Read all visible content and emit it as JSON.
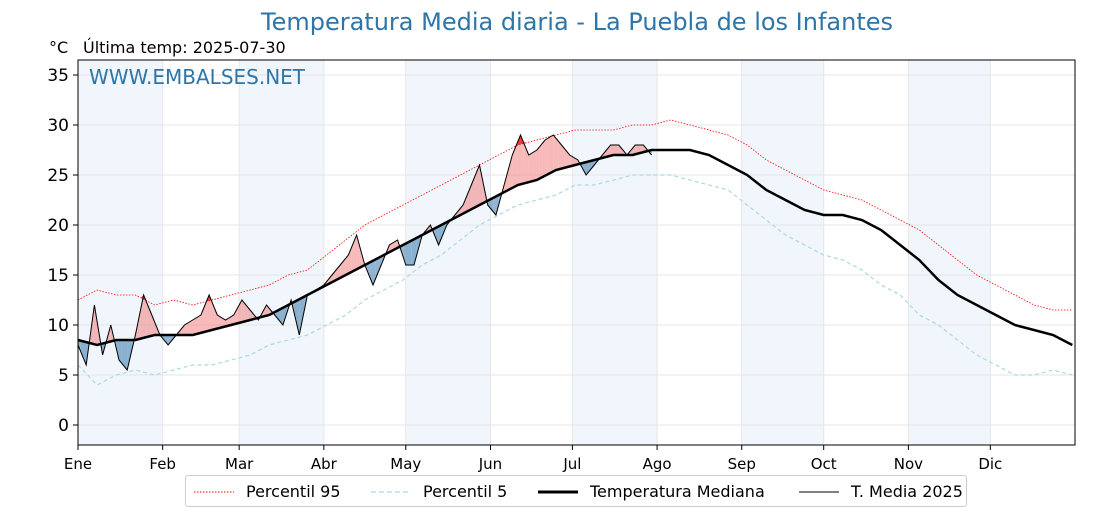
{
  "header": {
    "title": "Temperatura Media diaria - La Puebla de los Infantes",
    "unit": "°C",
    "last_temp": "Última temp: 2025-07-30"
  },
  "watermark": "WWW.EMBALSES.NET",
  "legend": {
    "items": [
      {
        "label": "Percentil 95",
        "color": "#ff0000",
        "style": "dotted"
      },
      {
        "label": "Percentil 5",
        "color": "#add8e6",
        "style": "dashed"
      },
      {
        "label": "Temperatura Mediana",
        "color": "#000000",
        "style": "solid-thick"
      },
      {
        "label": "T. Media 2025",
        "color": "#000000",
        "style": "solid-thin"
      }
    ]
  },
  "colors": {
    "above_median_fill": "#f08080",
    "above_p95_fill": "#ff0000",
    "below_median_fill": "#4682b4",
    "month_band": "#f0f6fb",
    "title": "#2e75a8"
  },
  "chart_data": {
    "type": "line",
    "ylabel": "°C",
    "ylim": [
      -2,
      36.5
    ],
    "yticks": [
      0,
      5,
      10,
      15,
      20,
      25,
      30,
      35
    ],
    "months": [
      "Ene",
      "Feb",
      "Mar",
      "Abr",
      "May",
      "Jun",
      "Jul",
      "Ago",
      "Sep",
      "Oct",
      "Nov",
      "Dic"
    ],
    "grid": true,
    "series": [
      {
        "name": "Percentil 95",
        "points": [
          [
            1,
            12.5
          ],
          [
            8,
            13.5
          ],
          [
            15,
            13
          ],
          [
            22,
            13
          ],
          [
            29,
            12
          ],
          [
            36,
            12.5
          ],
          [
            43,
            12
          ],
          [
            50,
            12.5
          ],
          [
            57,
            13
          ],
          [
            64,
            13.5
          ],
          [
            71,
            14
          ],
          [
            78,
            15
          ],
          [
            85,
            15.5
          ],
          [
            92,
            17
          ],
          [
            99,
            18.5
          ],
          [
            106,
            20
          ],
          [
            113,
            21
          ],
          [
            120,
            22
          ],
          [
            127,
            23
          ],
          [
            134,
            24
          ],
          [
            141,
            25
          ],
          [
            148,
            26
          ],
          [
            155,
            27
          ],
          [
            162,
            28
          ],
          [
            169,
            28.5
          ],
          [
            176,
            29
          ],
          [
            183,
            29.5
          ],
          [
            190,
            29.5
          ],
          [
            197,
            29.5
          ],
          [
            204,
            30
          ],
          [
            211,
            30
          ],
          [
            218,
            30.5
          ],
          [
            225,
            30
          ],
          [
            232,
            29.5
          ],
          [
            239,
            29
          ],
          [
            246,
            28
          ],
          [
            253,
            26.5
          ],
          [
            260,
            25.5
          ],
          [
            267,
            24.5
          ],
          [
            274,
            23.5
          ],
          [
            281,
            23
          ],
          [
            288,
            22.5
          ],
          [
            295,
            21.5
          ],
          [
            302,
            20.5
          ],
          [
            309,
            19.5
          ],
          [
            316,
            18
          ],
          [
            323,
            16.5
          ],
          [
            330,
            15
          ],
          [
            337,
            14
          ],
          [
            344,
            13
          ],
          [
            351,
            12
          ],
          [
            358,
            11.5
          ],
          [
            365,
            11.5
          ]
        ]
      },
      {
        "name": "Percentil 5",
        "points": [
          [
            1,
            6
          ],
          [
            8,
            4
          ],
          [
            15,
            5
          ],
          [
            22,
            5.5
          ],
          [
            29,
            5
          ],
          [
            36,
            5.5
          ],
          [
            43,
            6
          ],
          [
            50,
            6
          ],
          [
            57,
            6.5
          ],
          [
            64,
            7
          ],
          [
            71,
            8
          ],
          [
            78,
            8.5
          ],
          [
            85,
            9
          ],
          [
            92,
            10
          ],
          [
            99,
            11
          ],
          [
            106,
            12.5
          ],
          [
            113,
            13.5
          ],
          [
            120,
            14.5
          ],
          [
            127,
            16
          ],
          [
            134,
            17
          ],
          [
            141,
            18.5
          ],
          [
            148,
            20
          ],
          [
            155,
            21
          ],
          [
            162,
            22
          ],
          [
            169,
            22.5
          ],
          [
            176,
            23
          ],
          [
            183,
            24
          ],
          [
            190,
            24
          ],
          [
            197,
            24.5
          ],
          [
            204,
            25
          ],
          [
            211,
            25
          ],
          [
            218,
            25
          ],
          [
            225,
            24.5
          ],
          [
            232,
            24
          ],
          [
            239,
            23.5
          ],
          [
            246,
            22
          ],
          [
            253,
            20.5
          ],
          [
            260,
            19
          ],
          [
            267,
            18
          ],
          [
            274,
            17
          ],
          [
            281,
            16.5
          ],
          [
            288,
            15.5
          ],
          [
            295,
            14
          ],
          [
            302,
            13
          ],
          [
            309,
            11
          ],
          [
            316,
            10
          ],
          [
            323,
            8.5
          ],
          [
            330,
            7
          ],
          [
            337,
            6
          ],
          [
            344,
            5
          ],
          [
            351,
            5
          ],
          [
            358,
            5.5
          ],
          [
            365,
            5
          ]
        ]
      },
      {
        "name": "Temperatura Mediana",
        "points": [
          [
            1,
            8.5
          ],
          [
            8,
            8
          ],
          [
            15,
            8.5
          ],
          [
            22,
            8.5
          ],
          [
            29,
            9
          ],
          [
            36,
            9
          ],
          [
            43,
            9
          ],
          [
            50,
            9.5
          ],
          [
            57,
            10
          ],
          [
            64,
            10.5
          ],
          [
            71,
            11
          ],
          [
            78,
            12
          ],
          [
            85,
            13
          ],
          [
            92,
            14
          ],
          [
            99,
            15
          ],
          [
            106,
            16
          ],
          [
            113,
            17
          ],
          [
            120,
            18
          ],
          [
            127,
            19
          ],
          [
            134,
            20
          ],
          [
            141,
            21
          ],
          [
            148,
            22
          ],
          [
            155,
            23
          ],
          [
            162,
            24
          ],
          [
            169,
            24.5
          ],
          [
            176,
            25.5
          ],
          [
            183,
            26
          ],
          [
            190,
            26.5
          ],
          [
            197,
            27
          ],
          [
            204,
            27
          ],
          [
            211,
            27.5
          ],
          [
            218,
            27.5
          ],
          [
            225,
            27.5
          ],
          [
            232,
            27
          ],
          [
            239,
            26
          ],
          [
            246,
            25
          ],
          [
            253,
            23.5
          ],
          [
            260,
            22.5
          ],
          [
            267,
            21.5
          ],
          [
            274,
            21
          ],
          [
            281,
            21
          ],
          [
            288,
            20.5
          ],
          [
            295,
            19.5
          ],
          [
            302,
            18
          ],
          [
            309,
            16.5
          ],
          [
            316,
            14.5
          ],
          [
            323,
            13
          ],
          [
            330,
            12
          ],
          [
            337,
            11
          ],
          [
            344,
            10
          ],
          [
            351,
            9.5
          ],
          [
            358,
            9
          ],
          [
            365,
            8
          ]
        ]
      },
      {
        "name": "T. Media 2025",
        "points": [
          [
            1,
            8
          ],
          [
            4,
            6
          ],
          [
            7,
            12
          ],
          [
            10,
            7
          ],
          [
            13,
            10
          ],
          [
            16,
            6.5
          ],
          [
            19,
            5.5
          ],
          [
            22,
            9
          ],
          [
            25,
            13
          ],
          [
            28,
            11
          ],
          [
            31,
            9
          ],
          [
            34,
            8
          ],
          [
            37,
            9
          ],
          [
            40,
            10
          ],
          [
            43,
            10.5
          ],
          [
            46,
            11
          ],
          [
            49,
            13
          ],
          [
            52,
            11
          ],
          [
            55,
            10.5
          ],
          [
            58,
            11
          ],
          [
            61,
            12.5
          ],
          [
            64,
            11.5
          ],
          [
            67,
            10.5
          ],
          [
            70,
            12
          ],
          [
            73,
            11
          ],
          [
            76,
            10
          ],
          [
            79,
            12.5
          ],
          [
            82,
            9
          ],
          [
            85,
            13
          ],
          [
            88,
            13.5
          ],
          [
            91,
            14
          ],
          [
            94,
            15
          ],
          [
            97,
            16
          ],
          [
            100,
            17
          ],
          [
            103,
            19
          ],
          [
            106,
            16
          ],
          [
            109,
            14
          ],
          [
            112,
            16
          ],
          [
            115,
            18
          ],
          [
            118,
            18.5
          ],
          [
            121,
            16
          ],
          [
            124,
            16
          ],
          [
            127,
            19
          ],
          [
            130,
            20
          ],
          [
            133,
            18
          ],
          [
            136,
            20
          ],
          [
            139,
            21
          ],
          [
            142,
            22
          ],
          [
            145,
            24
          ],
          [
            148,
            26
          ],
          [
            151,
            22
          ],
          [
            154,
            21
          ],
          [
            157,
            24
          ],
          [
            160,
            27
          ],
          [
            163,
            29
          ],
          [
            166,
            27
          ],
          [
            169,
            27.5
          ],
          [
            172,
            28.5
          ],
          [
            175,
            29
          ],
          [
            178,
            28
          ],
          [
            181,
            27
          ],
          [
            184,
            26.5
          ],
          [
            187,
            25
          ],
          [
            190,
            26
          ],
          [
            193,
            27
          ],
          [
            196,
            28
          ],
          [
            199,
            28
          ],
          [
            202,
            27
          ],
          [
            205,
            28
          ],
          [
            208,
            28
          ],
          [
            211,
            27
          ]
        ]
      }
    ]
  }
}
